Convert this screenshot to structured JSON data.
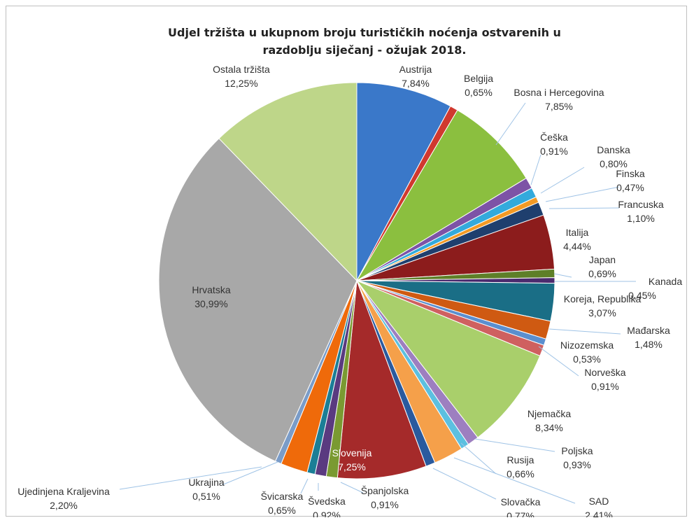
{
  "chart_data": {
    "type": "pie",
    "title_line1": "Udjel tržišta u ukupnom broju turističkih noćenja ostvarenih u",
    "title_line2": "razdoblju siječanj - ožujak 2018.",
    "slices": [
      {
        "name": "Austrija",
        "value": 7.84,
        "label": "7,84%",
        "color": "#3a78c9"
      },
      {
        "name": "Belgija",
        "value": 0.65,
        "label": "0,65%",
        "color": "#d0392f"
      },
      {
        "name": "Bosna i Hercegovina",
        "value": 7.85,
        "label": "7,85%",
        "color": "#8bbf3f"
      },
      {
        "name": "Češka",
        "value": 0.91,
        "label": "0,91%",
        "color": "#7d53a6"
      },
      {
        "name": "Danska",
        "value": 0.8,
        "label": "0,80%",
        "color": "#33aadc"
      },
      {
        "name": "Finska",
        "value": 0.47,
        "label": "0,47%",
        "color": "#f39a25"
      },
      {
        "name": "Francuska",
        "value": 1.1,
        "label": "1,10%",
        "color": "#1f3f6e"
      },
      {
        "name": "Italija",
        "value": 4.44,
        "label": "4,44%",
        "color": "#8c1c1c"
      },
      {
        "name": "Japan",
        "value": 0.69,
        "label": "0,69%",
        "color": "#5e7f28"
      },
      {
        "name": "Kanada",
        "value": 0.45,
        "label": "0,45%",
        "color": "#4b2a6e"
      },
      {
        "name": "Koreja, Republika",
        "value": 3.07,
        "label": "3,07%",
        "color": "#1a6e86"
      },
      {
        "name": "Mađarska",
        "value": 1.48,
        "label": "1,48%",
        "color": "#cf5a12"
      },
      {
        "name": "Nizozemska",
        "value": 0.53,
        "label": "0,53%",
        "color": "#5b8fcf"
      },
      {
        "name": "Norveška",
        "value": 0.91,
        "label": "0,91%",
        "color": "#cf6060"
      },
      {
        "name": "Njemačka",
        "value": 8.34,
        "label": "8,34%",
        "color": "#a9cf6b"
      },
      {
        "name": "Poljska",
        "value": 0.93,
        "label": "0,93%",
        "color": "#9d7fc0"
      },
      {
        "name": "Rusija",
        "value": 0.66,
        "label": "0,66%",
        "color": "#5cc0e0"
      },
      {
        "name": "SAD",
        "value": 2.41,
        "label": "2,41%",
        "color": "#f5a04a"
      },
      {
        "name": "Slovačka",
        "value": 0.77,
        "label": "0,77%",
        "color": "#2a5a9e"
      },
      {
        "name": "Slovenija",
        "value": 7.25,
        "label": "7,25%",
        "color": "#a52a2a"
      },
      {
        "name": "Španjolska",
        "value": 0.91,
        "label": "0,91%",
        "color": "#7a9a32"
      },
      {
        "name": "Švedska",
        "value": 0.92,
        "label": "0,92%",
        "color": "#5a3a80"
      },
      {
        "name": "Švicarska",
        "value": 0.65,
        "label": "0,65%",
        "color": "#1b7e96"
      },
      {
        "name": "Ujedinjena Kraljevina",
        "value": 2.2,
        "label": "2,20%",
        "color": "#ef6a0a"
      },
      {
        "name": "Ukrajina",
        "value": 0.51,
        "label": "0,51%",
        "color": "#7a9cc8"
      },
      {
        "name": "Hrvatska",
        "value": 30.99,
        "label": "30,99%",
        "color": "#a8a8a8"
      },
      {
        "name": "Ostala tržišta",
        "value": 12.25,
        "label": "12,25%",
        "color": "#bed689"
      }
    ]
  }
}
